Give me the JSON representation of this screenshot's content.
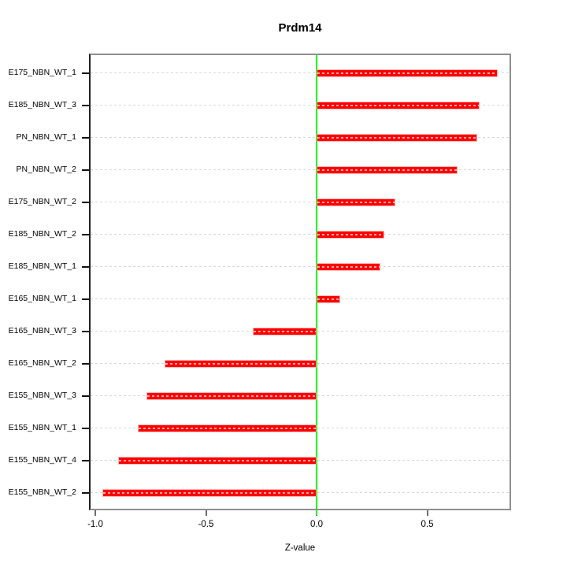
{
  "title": "Prdm14",
  "chart_data": {
    "type": "bar",
    "orientation": "horizontal",
    "title": "Prdm14",
    "xlabel": "Z-value",
    "ylabel": "",
    "categories": [
      "E175_NBN_WT_1",
      "E185_NBN_WT_3",
      "PN_NBN_WT_1",
      "PN_NBN_WT_2",
      "E175_NBN_WT_2",
      "E185_NBN_WT_2",
      "E185_NBN_WT_1",
      "E165_NBN_WT_1",
      "E165_NBN_WT_3",
      "E165_NBN_WT_2",
      "E155_NBN_WT_3",
      "E155_NBN_WT_1",
      "E155_NBN_WT_4",
      "E155_NBN_WT_2"
    ],
    "values": [
      0.81,
      0.73,
      0.72,
      0.63,
      0.35,
      0.3,
      0.28,
      0.1,
      -0.28,
      -0.68,
      -0.76,
      -0.8,
      -0.89,
      -0.96
    ],
    "x_ticks": [
      -1.0,
      -0.5,
      0.0,
      0.5
    ],
    "x_tick_labels": [
      "-1.0",
      "-0.5",
      "0.0",
      "0.5"
    ],
    "xlim": [
      -1.02,
      0.875
    ],
    "grid": "horizontal-dashed-per-category",
    "legend": "none",
    "colors": {
      "bar": "#ff0000",
      "zero_line": "#00ff00",
      "gridline": "#d8d8d8",
      "panel_border": "#8f8f8f",
      "panel_border_left": "#1f1f1f",
      "text": "#000000"
    }
  }
}
